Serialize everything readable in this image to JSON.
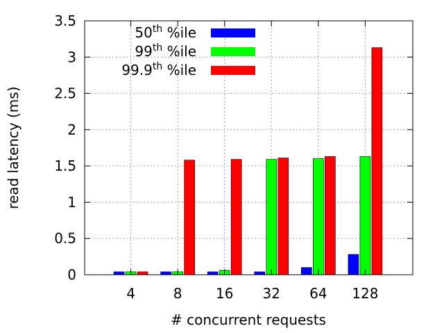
{
  "chart_data": {
    "type": "bar",
    "title": "",
    "xlabel": "# concurrent requests",
    "ylabel": "read latency (ms)",
    "categories": [
      "4",
      "8",
      "16",
      "32",
      "64",
      "128"
    ],
    "ylim": [
      0,
      3.5
    ],
    "yticks": [
      "0",
      "0.5",
      "1",
      "1.5",
      "2",
      "2.5",
      "3",
      "3.5"
    ],
    "grid": true,
    "legend_position": "top",
    "series": [
      {
        "label_main": "50",
        "label_sup": "th",
        "label_suffix": " %ile",
        "color": "#0000ff",
        "values": [
          0.04,
          0.04,
          0.04,
          0.04,
          0.1,
          0.28
        ]
      },
      {
        "label_main": "99",
        "label_sup": "th",
        "label_suffix": " %ile",
        "color": "#00ff00",
        "values": [
          0.04,
          0.04,
          0.06,
          1.59,
          1.6,
          1.63
        ]
      },
      {
        "label_main": "99.9",
        "label_sup": "th",
        "label_suffix": " %ile",
        "color": "#ff0000",
        "values": [
          0.04,
          1.58,
          1.59,
          1.61,
          1.63,
          3.13
        ]
      }
    ]
  }
}
